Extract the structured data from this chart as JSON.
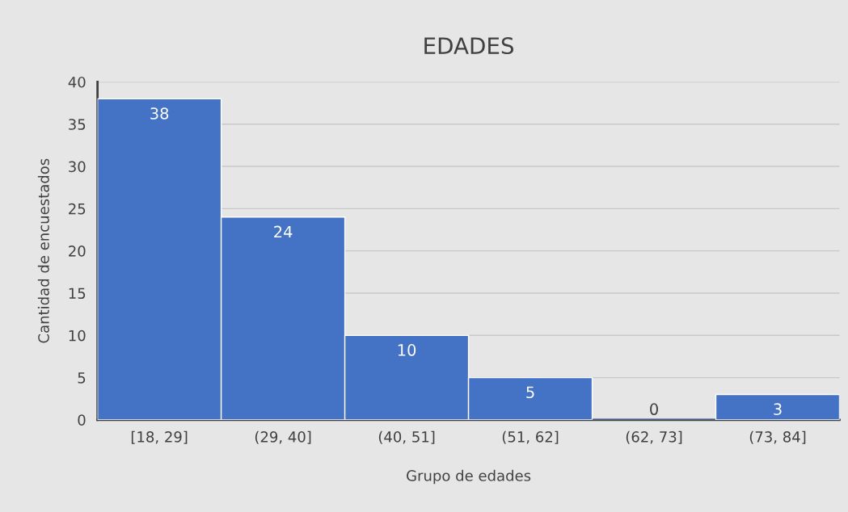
{
  "chart_data": {
    "type": "bar",
    "title": "EDADES",
    "xlabel": "Grupo de edades",
    "ylabel": "Cantidad de encuestados",
    "categories": [
      "[18, 29]",
      "(29, 40]",
      "(40, 51]",
      "(51, 62]",
      "(62, 73]",
      "(73, 84]"
    ],
    "values": [
      38,
      24,
      10,
      5,
      0,
      3
    ],
    "color": "#4472c4",
    "ylim": [
      0,
      40
    ],
    "yticks": [
      0,
      5,
      10,
      15,
      20,
      25,
      30,
      35,
      40
    ],
    "grid": "y",
    "data_labels": true
  }
}
